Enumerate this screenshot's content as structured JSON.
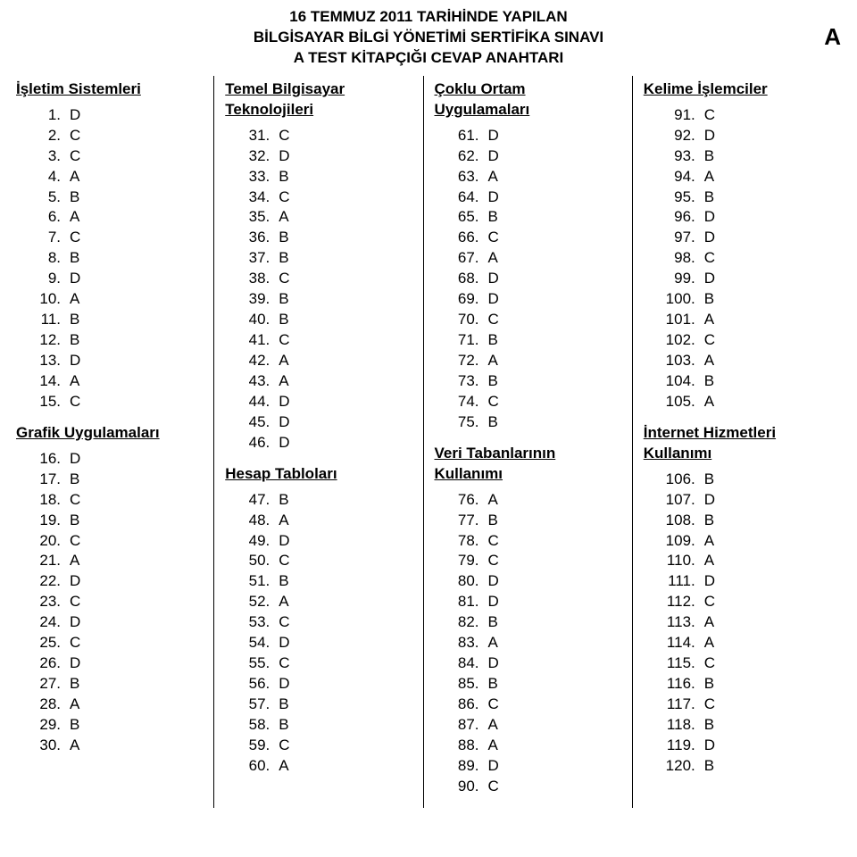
{
  "header": {
    "line1": "16 TEMMUZ 2011 TARİHİNDE YAPILAN",
    "line2": "BİLGİSAYAR BİLGİ YÖNETİMİ SERTİFİKA SINAVI",
    "line3": "A TEST KİTAPÇIĞI CEVAP ANAHTARI",
    "corner": "A"
  },
  "colors": {
    "text": "#000000",
    "background": "#ffffff"
  },
  "sections": [
    {
      "column": 0,
      "title": "İşletim Sistemleri",
      "start": 1,
      "answers": [
        "D",
        "C",
        "C",
        "A",
        "B",
        "A",
        "C",
        "B",
        "D",
        "A",
        "B",
        "B",
        "D",
        "A",
        "C"
      ]
    },
    {
      "column": 0,
      "title": "Grafik Uygulamaları",
      "start": 16,
      "answers": [
        "D",
        "B",
        "C",
        "B",
        "C",
        "A",
        "D",
        "C",
        "D",
        "C",
        "D",
        "B",
        "A",
        "B",
        "A"
      ]
    },
    {
      "column": 1,
      "title": "Temel Bilgisayar Teknolojileri",
      "start": 31,
      "answers": [
        "C",
        "D",
        "B",
        "C",
        "A",
        "B",
        "B",
        "C",
        "B",
        "B",
        "C",
        "A",
        "A",
        "D",
        "D",
        "D"
      ]
    },
    {
      "column": 1,
      "title": "Hesap Tabloları",
      "start": 47,
      "answers": [
        "B",
        "A",
        "D",
        "C",
        "B",
        "A",
        "C",
        "D",
        "C",
        "D",
        "B",
        "B",
        "C",
        "A"
      ]
    },
    {
      "column": 2,
      "title": "Çoklu Ortam Uygulamaları",
      "start": 61,
      "answers": [
        "D",
        "D",
        "A",
        "D",
        "B",
        "C",
        "A",
        "D",
        "D",
        "C",
        "B",
        "A",
        "B",
        "C",
        "B"
      ]
    },
    {
      "column": 2,
      "title": "Veri Tabanlarının Kullanımı",
      "start": 76,
      "answers": [
        "A",
        "B",
        "C",
        "C",
        "D",
        "D",
        "B",
        "A",
        "D",
        "B",
        "C",
        "A",
        "A",
        "D",
        "C"
      ]
    },
    {
      "column": 3,
      "title": "Kelime İşlemciler",
      "start": 91,
      "answers": [
        "C",
        "D",
        "B",
        "A",
        "B",
        "D",
        "D",
        "C",
        "D",
        "B",
        "A",
        "C",
        "A",
        "B",
        "A"
      ]
    },
    {
      "column": 3,
      "title": "İnternet Hizmetleri Kullanımı",
      "start": 106,
      "answers": [
        "B",
        "D",
        "B",
        "A",
        "A",
        "D",
        "C",
        "A",
        "A",
        "C",
        "B",
        "C",
        "B",
        "D",
        "B"
      ]
    }
  ]
}
